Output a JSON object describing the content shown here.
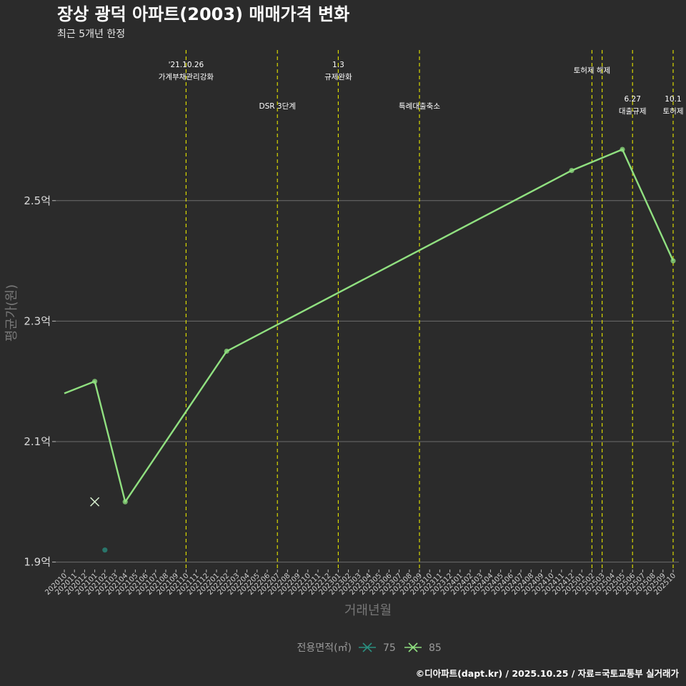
{
  "chart_data": {
    "type": "line",
    "title": "장상 광덕 아파트(2003) 매매가격 변화",
    "subtitle": "최근 5개년 한정",
    "xlabel": "거래년월",
    "ylabel": "평균가(원)",
    "ylim": [
      1.89,
      2.75
    ],
    "yticks": [
      {
        "value": 1.9,
        "label": "1.9억"
      },
      {
        "value": 2.1,
        "label": "2.1억"
      },
      {
        "value": 2.3,
        "label": "2.3억"
      },
      {
        "value": 2.5,
        "label": "2.5억"
      }
    ],
    "categories": [
      "202010",
      "202011",
      "202012",
      "202101",
      "202102",
      "202103",
      "202104",
      "202105",
      "202106",
      "202107",
      "202108",
      "202109",
      "202110",
      "202111",
      "202112",
      "202201",
      "202202",
      "202203",
      "202204",
      "202205",
      "202206",
      "202207",
      "202208",
      "202209",
      "202210",
      "202211",
      "202212",
      "202301",
      "202302",
      "202303",
      "202304",
      "202305",
      "202306",
      "202307",
      "202308",
      "202309",
      "202310",
      "202311",
      "202312",
      "202401",
      "202402",
      "202403",
      "202404",
      "202405",
      "202406",
      "202407",
      "202408",
      "202409",
      "202410",
      "202411",
      "202412",
      "202501",
      "202502",
      "202503",
      "202504",
      "202505",
      "202506",
      "202507",
      "202508",
      "202509",
      "202510"
    ],
    "series": [
      {
        "name": "85",
        "color": "#90e080",
        "line": [
          {
            "x": "202010",
            "y": 2.18
          },
          {
            "x": "202101",
            "y": 2.2
          },
          {
            "x": "202104",
            "y": 2.0
          },
          {
            "x": "202202",
            "y": 2.25
          },
          {
            "x": "202412",
            "y": 2.55
          },
          {
            "x": "202505",
            "y": 2.585
          },
          {
            "x": "202510",
            "y": 2.4
          }
        ],
        "points": [
          {
            "x": "202101",
            "y": 2.2
          },
          {
            "x": "202104",
            "y": 2.0
          },
          {
            "x": "202202",
            "y": 2.25
          },
          {
            "x": "202412",
            "y": 2.55
          },
          {
            "x": "202505",
            "y": 2.585
          },
          {
            "x": "202510",
            "y": 2.4
          }
        ],
        "marks": [
          {
            "x": "202101",
            "y": 2.0
          }
        ]
      },
      {
        "name": "75",
        "color": "#2a8f80",
        "line": [],
        "points": [
          {
            "x": "202102",
            "y": 1.92
          }
        ],
        "marks": []
      }
    ],
    "events": [
      {
        "x": "202110",
        "lines": [
          "'21.10.26",
          "가계부채관리강화"
        ],
        "row": 1
      },
      {
        "x": "202207",
        "lines": [
          "DSR 3단계"
        ],
        "row": 2
      },
      {
        "x": "202301",
        "lines": [
          "1.3",
          "규제완화"
        ],
        "row": 1
      },
      {
        "x": "202309",
        "lines": [
          "특례대출축소"
        ],
        "row": 2
      },
      {
        "x": "202502",
        "lines": [
          "토허제 해제"
        ],
        "row": 1
      },
      {
        "x": "202503",
        "lines": [],
        "row": 0
      },
      {
        "x": "202506",
        "lines": [
          "6.27",
          "대출규제"
        ],
        "row": 3
      },
      {
        "x": "202510",
        "lines": [
          "10.1",
          "토허제"
        ],
        "row": 3
      }
    ],
    "event_color": "#d8d800",
    "legend": {
      "title": "전용면적(㎡)",
      "items": [
        {
          "label": "75",
          "color": "#2a8f80"
        },
        {
          "label": "85",
          "color": "#90e080"
        }
      ],
      "position": "bottom"
    },
    "caption": "©디아파트(dapt.kr) / 2025.10.25 / 자료=국토교통부 실거래가"
  }
}
